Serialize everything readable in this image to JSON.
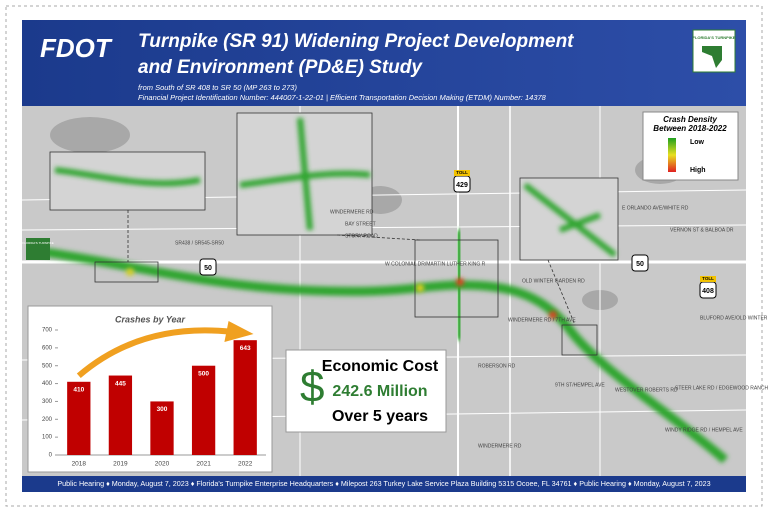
{
  "header": {
    "logo": "FDOT",
    "title_line1": "Turnpike (SR 91) Widening Project Development",
    "title_line2": "and Environment (PD&E) Study",
    "subtitle_line1": "from South of SR 408 to SR 50 (MP 263 to 273)",
    "subtitle_line2": "Financial Project Identification Number: 444007-1-22-01 | Efficient Transportation Decision Making (ETDM) Number: 14378",
    "badge": "FLORIDA'S TURNPIKE"
  },
  "legend": {
    "title": "Crash Density Between 2018-2022",
    "low": "Low",
    "high": "High"
  },
  "map": {
    "labels": [
      "BAY STREET",
      "STORY ROAD",
      "W COLONIAL DR/MARTIN LUTHER KING R",
      "SR438 / SR545-SR50",
      "OLD WINTER GARDEN RD",
      "ROBERSON RD",
      "WINDERMERE RD",
      "WINDERMERE RD",
      "WESTOVER ROBERTS RD",
      "WINDY RIDGE RD / HEMPEL AVE",
      "STEER LAKE RD / EDGEWOOD RANCH RD",
      "BLUFORD AVE/OLD WINTER GARDEN RD",
      "VERNON ST & BALBOA DR",
      "E ORLANDO AVE/WHITE RD",
      "9TH ST/HEMPEL AVE",
      "WINDERMERE RD / 7TH AVE"
    ],
    "shields": [
      "50",
      "429",
      "50",
      "408"
    ],
    "toll": "TOLL",
    "badge": "FLORIDA'S TURNPIKE"
  },
  "cost": {
    "heading": "Economic Cost",
    "symbol": "$",
    "amount": "242.6 Million",
    "period": "Over 5 years"
  },
  "chart_data": {
    "type": "bar",
    "title": "Crashes by Year",
    "categories": [
      "2018",
      "2019",
      "2020",
      "2021",
      "2022"
    ],
    "values": [
      410,
      445,
      300,
      500,
      643
    ],
    "color": "#c00000",
    "ylim": [
      0,
      700
    ],
    "yticks": [
      0,
      100,
      200,
      300,
      400,
      500,
      600,
      700
    ],
    "grid": false
  },
  "footer": "Public Hearing ♦ Monday, August 7, 2023 ♦ Florida's Turnpike Enterprise Headquarters ♦ Milepost 263 Turkey Lake Service Plaza Building 5315 Ocoee, FL 34761 ♦ Public Hearing ♦ Monday, August 7, 2023"
}
